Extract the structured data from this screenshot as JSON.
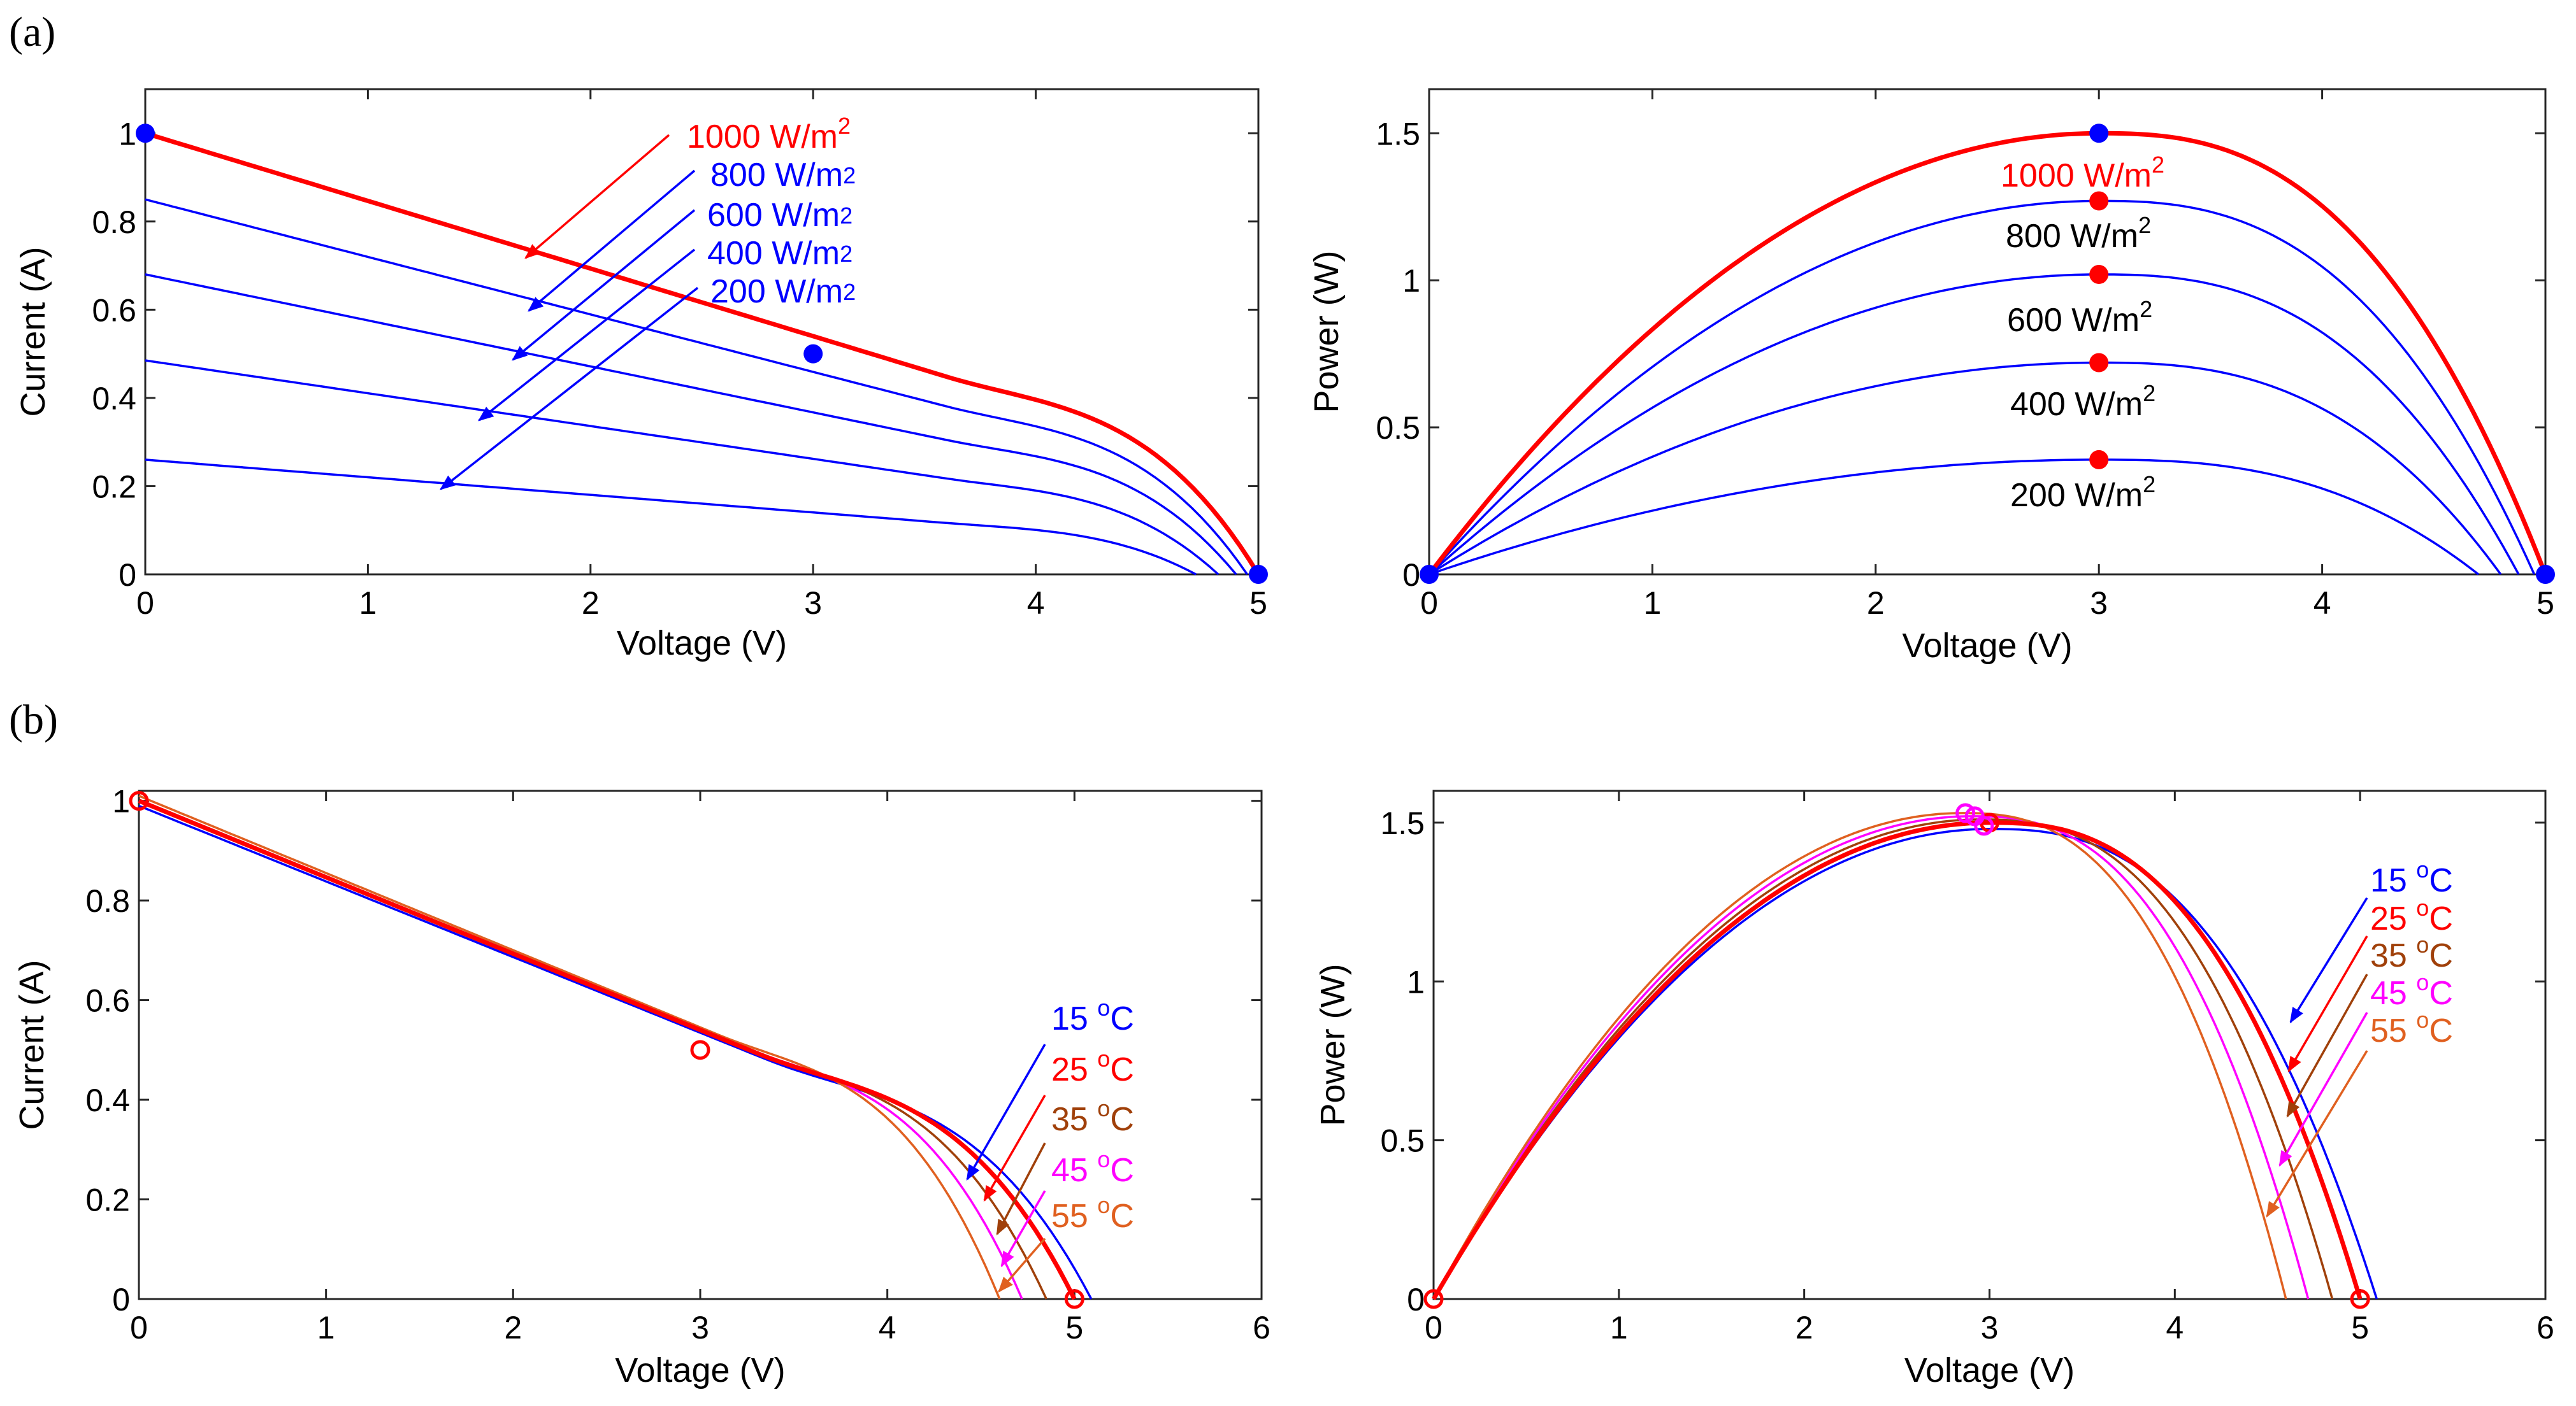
{
  "figure": {
    "panel_a_label": "(a)",
    "panel_b_label": "(b)"
  },
  "chart_data": [
    {
      "id": "a1",
      "type": "line",
      "xlabel": "Voltage (V)",
      "ylabel": "Current (A)",
      "xlim": [
        0,
        5
      ],
      "ylim": [
        0,
        1.1
      ],
      "xticks": [
        "0",
        "1",
        "2",
        "3",
        "4",
        "5"
      ],
      "yticks": [
        "0",
        "0.2",
        "0.4",
        "0.6",
        "0.8",
        "1"
      ],
      "series": [
        {
          "name": "1000 W/m2",
          "color": "#ff0000",
          "isc": 1.0,
          "voc": 5.0,
          "knee": 3.6,
          "bold": true
        },
        {
          "name": "800 W/m2",
          "color": "#0000ff",
          "isc": 0.85,
          "voc": 4.95,
          "knee": 3.6
        },
        {
          "name": "600 W/m2",
          "color": "#0000ff",
          "isc": 0.68,
          "voc": 4.9,
          "knee": 3.6
        },
        {
          "name": "400 W/m2",
          "color": "#0000ff",
          "isc": 0.485,
          "voc": 4.82,
          "knee": 3.6
        },
        {
          "name": "200 W/m2",
          "color": "#0000ff",
          "isc": 0.26,
          "voc": 4.72,
          "knee": 3.6
        }
      ],
      "markers": [
        {
          "x": 0,
          "y": 1.0,
          "color": "#0000ff"
        },
        {
          "x": 3,
          "y": 0.5,
          "color": "#0000ff"
        },
        {
          "x": 5,
          "y": 0,
          "color": "#0000ff"
        }
      ],
      "annotations": [
        {
          "base": "1000 W/m",
          "sup": "2",
          "color": "#ff0000",
          "style": "sup"
        },
        {
          "base": "800 W/m",
          "sup": "2",
          "color": "#0000ff",
          "style": "sub"
        },
        {
          "base": "600 W/m",
          "sup": "2",
          "color": "#0000ff",
          "style": "sub"
        },
        {
          "base": "400 W/m",
          "sup": "2",
          "color": "#0000ff",
          "style": "sub"
        },
        {
          "base": "200 W/m",
          "sup": "2",
          "color": "#0000ff",
          "style": "sub"
        }
      ]
    },
    {
      "id": "a2",
      "type": "line",
      "xlabel": "Voltage (V)",
      "ylabel": "Power (W)",
      "xlim": [
        0,
        5
      ],
      "ylim": [
        0,
        1.65
      ],
      "xticks": [
        "0",
        "1",
        "2",
        "3",
        "4",
        "5"
      ],
      "yticks": [
        "0",
        "0.5",
        "1",
        "1.5"
      ],
      "series": [
        {
          "name": "1000 W/m2",
          "color": "#ff0000",
          "pmax": 1.5,
          "vmp": 3.0,
          "voc": 5.0,
          "bold": true
        },
        {
          "name": "800 W/m2",
          "color": "#0000ff",
          "pmax": 1.27,
          "vmp": 3.0,
          "voc": 4.95
        },
        {
          "name": "600 W/m2",
          "color": "#0000ff",
          "pmax": 1.02,
          "vmp": 3.0,
          "voc": 4.88
        },
        {
          "name": "400 W/m2",
          "color": "#0000ff",
          "pmax": 0.72,
          "vmp": 3.0,
          "voc": 4.8
        },
        {
          "name": "200 W/m2",
          "color": "#0000ff",
          "pmax": 0.39,
          "vmp": 3.0,
          "voc": 4.7
        }
      ],
      "markers": [
        {
          "x": 3,
          "y": 1.5,
          "color": "#0000ff"
        },
        {
          "x": 0,
          "y": 0,
          "color": "#0000ff"
        },
        {
          "x": 5,
          "y": 0,
          "color": "#0000ff"
        },
        {
          "x": 3,
          "y": 1.27,
          "color": "#ff0000"
        },
        {
          "x": 3,
          "y": 1.02,
          "color": "#ff0000"
        },
        {
          "x": 3,
          "y": 0.72,
          "color": "#ff0000"
        },
        {
          "x": 3,
          "y": 0.39,
          "color": "#ff0000"
        }
      ],
      "annotations": [
        {
          "base": "1000 W/m",
          "sup": "2",
          "color": "#ff0000"
        },
        {
          "base": "800 W/m",
          "sup": "2",
          "color": "#000000"
        },
        {
          "base": "600 W/m",
          "sup": "2",
          "color": "#000000"
        },
        {
          "base": "400 W/m",
          "sup": "2",
          "color": "#000000"
        },
        {
          "base": "200 W/m",
          "sup": "2",
          "color": "#000000"
        }
      ]
    },
    {
      "id": "b1",
      "type": "line",
      "xlabel": "Voltage (V)",
      "ylabel": "Current (A)",
      "xlim": [
        0,
        6
      ],
      "ylim": [
        0,
        1.02
      ],
      "xticks": [
        "0",
        "1",
        "2",
        "3",
        "4",
        "5",
        "6"
      ],
      "yticks": [
        "0",
        "0.2",
        "0.4",
        "0.6",
        "0.8",
        "1"
      ],
      "series": [
        {
          "name": "15 oC",
          "color": "#0000ff",
          "isc": 0.99,
          "voc": 5.09,
          "knee": 3.35
        },
        {
          "name": "25 oC",
          "color": "#ff0000",
          "isc": 1.0,
          "voc": 5.0,
          "knee": 3.3,
          "bold": true
        },
        {
          "name": "35 oC",
          "color": "#a0400a",
          "isc": 1.0,
          "voc": 4.85,
          "knee": 3.25
        },
        {
          "name": "45 oC",
          "color": "#ff00ff",
          "isc": 1.0,
          "voc": 4.72,
          "knee": 3.2
        },
        {
          "name": "55 oC",
          "color": "#e06020",
          "isc": 1.01,
          "voc": 4.6,
          "knee": 3.1
        }
      ],
      "markers": [
        {
          "x": 0,
          "y": 1.0,
          "color": "#ff0000",
          "open": true
        },
        {
          "x": 3,
          "y": 0.5,
          "color": "#ff0000",
          "open": true
        },
        {
          "x": 5,
          "y": 0,
          "color": "#ff0000",
          "open": true
        }
      ],
      "annotations": [
        {
          "base": "15 ",
          "sup": "o",
          "tail": "C",
          "color": "#0000ff"
        },
        {
          "base": "25 ",
          "sup": "o",
          "tail": "C",
          "color": "#ff0000"
        },
        {
          "base": "35 ",
          "sup": "o",
          "tail": "C",
          "color": "#a0400a"
        },
        {
          "base": "45 ",
          "sup": "o",
          "tail": "C",
          "color": "#ff00ff"
        },
        {
          "base": "55 ",
          "sup": "o",
          "tail": "C",
          "color": "#e06020"
        }
      ]
    },
    {
      "id": "b2",
      "type": "line",
      "xlabel": "Voltage (V)",
      "ylabel": "Power (W)",
      "xlim": [
        0,
        6
      ],
      "ylim": [
        0,
        1.6
      ],
      "xticks": [
        "0",
        "1",
        "2",
        "3",
        "4",
        "5",
        "6"
      ],
      "yticks": [
        "0",
        "0.5",
        "1",
        "1.5"
      ],
      "series": [
        {
          "name": "15 oC",
          "color": "#0000ff",
          "pmax": 1.48,
          "vmp": 3.0,
          "voc": 5.09
        },
        {
          "name": "25 oC",
          "color": "#ff0000",
          "pmax": 1.5,
          "vmp": 3.0,
          "voc": 5.0,
          "bold": true
        },
        {
          "name": "35 oC",
          "color": "#a0400a",
          "pmax": 1.51,
          "vmp": 2.95,
          "voc": 4.85
        },
        {
          "name": "45 oC",
          "color": "#ff00ff",
          "pmax": 1.52,
          "vmp": 2.9,
          "voc": 4.72
        },
        {
          "name": "55 oC",
          "color": "#e06020",
          "pmax": 1.53,
          "vmp": 2.85,
          "voc": 4.6
        }
      ],
      "markers": [
        {
          "x": 0,
          "y": 0,
          "color": "#ff0000",
          "open": true
        },
        {
          "x": 3,
          "y": 1.5,
          "color": "#ff0000",
          "open": true
        },
        {
          "x": 5,
          "y": 0,
          "color": "#ff0000",
          "open": true
        },
        {
          "x": 2.92,
          "y": 1.52,
          "color": "#ff00ff",
          "open": true
        },
        {
          "x": 2.87,
          "y": 1.53,
          "color": "#ff00ff",
          "open": true
        },
        {
          "x": 2.97,
          "y": 1.49,
          "color": "#ff00ff",
          "open": true
        }
      ],
      "annotations": [
        {
          "base": "15 ",
          "sup": "o",
          "tail": "C",
          "color": "#0000ff"
        },
        {
          "base": "25 ",
          "sup": "o",
          "tail": "C",
          "color": "#ff0000"
        },
        {
          "base": "35 ",
          "sup": "o",
          "tail": "C",
          "color": "#a0400a"
        },
        {
          "base": "45 ",
          "sup": "o",
          "tail": "C",
          "color": "#ff00ff"
        },
        {
          "base": "55 ",
          "sup": "o",
          "tail": "C",
          "color": "#e06020"
        }
      ]
    }
  ]
}
